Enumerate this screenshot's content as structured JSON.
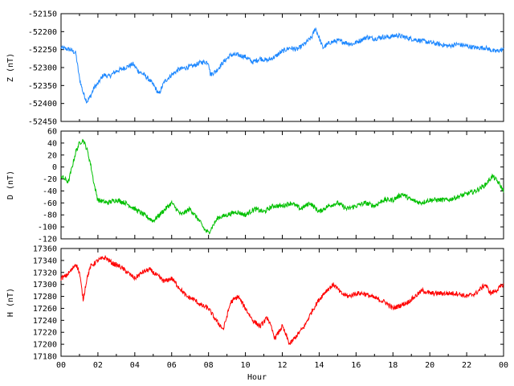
{
  "chart_data": [
    {
      "type": "line",
      "ylabel": "Z (nT)",
      "ylim": [
        -52450,
        -52150
      ],
      "yticks": [
        -52150,
        -52200,
        -52250,
        -52300,
        -52350,
        -52400,
        -52450
      ],
      "color": "#1e88ff",
      "x": [
        0,
        0.5,
        0.8,
        1.0,
        1.2,
        1.4,
        1.6,
        1.8,
        2.0,
        2.3,
        2.6,
        3.0,
        3.5,
        3.9,
        4.2,
        4.5,
        4.8,
        5.1,
        5.3,
        5.6,
        6.0,
        6.4,
        6.8,
        7.2,
        7.6,
        8.0,
        8.1,
        8.4,
        8.8,
        9.2,
        9.6,
        10.0,
        10.4,
        10.8,
        11.2,
        11.6,
        12.0,
        12.4,
        12.8,
        13.2,
        13.6,
        13.8,
        14.2,
        14.6,
        15.0,
        15.4,
        15.8,
        16.2,
        16.6,
        17.0,
        17.4,
        17.8,
        18.2,
        18.6,
        19.0,
        19.5,
        20.0,
        20.5,
        21.0,
        21.5,
        22.0,
        22.5,
        23.0,
        23.5,
        24.0
      ],
      "y": [
        -52245,
        -52250,
        -52260,
        -52330,
        -52370,
        -52395,
        -52380,
        -52355,
        -52345,
        -52320,
        -52325,
        -52310,
        -52300,
        -52290,
        -52310,
        -52320,
        -52335,
        -52355,
        -52375,
        -52340,
        -52320,
        -52305,
        -52300,
        -52295,
        -52285,
        -52285,
        -52320,
        -52310,
        -52285,
        -52265,
        -52265,
        -52270,
        -52285,
        -52275,
        -52280,
        -52270,
        -52255,
        -52245,
        -52250,
        -52235,
        -52215,
        -52190,
        -52245,
        -52230,
        -52225,
        -52230,
        -52235,
        -52225,
        -52215,
        -52220,
        -52215,
        -52215,
        -52210,
        -52215,
        -52220,
        -52225,
        -52230,
        -52235,
        -52240,
        -52235,
        -52240,
        -52245,
        -52245,
        -52255,
        -52250
      ]
    },
    {
      "type": "line",
      "ylabel": "D (nT)",
      "ylim": [
        -120,
        60
      ],
      "yticks": [
        60,
        40,
        20,
        0,
        -20,
        -40,
        -60,
        -80,
        -100,
        -120
      ],
      "color": "#00c000",
      "x": [
        0,
        0.4,
        0.6,
        0.8,
        1.0,
        1.2,
        1.4,
        1.6,
        1.8,
        2.0,
        2.5,
        3.0,
        3.5,
        4.0,
        4.5,
        5.0,
        5.5,
        6.0,
        6.5,
        7.0,
        7.5,
        7.8,
        8.0,
        8.2,
        8.5,
        9.0,
        9.5,
        10.0,
        10.5,
        11.0,
        11.5,
        12.0,
        12.5,
        13.0,
        13.5,
        14.0,
        14.5,
        15.0,
        15.5,
        16.0,
        16.5,
        17.0,
        17.5,
        18.0,
        18.5,
        19.0,
        19.5,
        20.0,
        20.5,
        21.0,
        21.5,
        22.0,
        22.5,
        23.0,
        23.4,
        23.7,
        24.0
      ],
      "y": [
        -15,
        -25,
        0,
        25,
        40,
        45,
        30,
        5,
        -30,
        -55,
        -60,
        -55,
        -60,
        -70,
        -80,
        -90,
        -75,
        -60,
        -80,
        -70,
        -90,
        -105,
        -110,
        -100,
        -85,
        -80,
        -75,
        -80,
        -70,
        -75,
        -65,
        -65,
        -60,
        -70,
        -60,
        -75,
        -65,
        -60,
        -70,
        -65,
        -60,
        -65,
        -55,
        -55,
        -45,
        -55,
        -60,
        -55,
        -55,
        -55,
        -50,
        -45,
        -40,
        -30,
        -15,
        -25,
        -40
      ]
    },
    {
      "type": "line",
      "ylabel": "H (nT)",
      "xlabel": "Hour",
      "ylim": [
        17180,
        17360
      ],
      "yticks": [
        17360,
        17340,
        17320,
        17300,
        17280,
        17260,
        17240,
        17220,
        17200,
        17180
      ],
      "xticks": [
        "00",
        "02",
        "04",
        "06",
        "08",
        "10",
        "12",
        "14",
        "16",
        "18",
        "20",
        "22",
        "00"
      ],
      "color": "#ff0000",
      "x": [
        0,
        0.3,
        0.6,
        0.8,
        1.0,
        1.2,
        1.4,
        1.6,
        2.0,
        2.4,
        2.8,
        3.2,
        3.6,
        4.0,
        4.4,
        4.8,
        5.2,
        5.6,
        6.0,
        6.4,
        6.8,
        7.2,
        7.6,
        8.0,
        8.4,
        8.8,
        9.2,
        9.6,
        10.0,
        10.4,
        10.8,
        11.2,
        11.6,
        12.0,
        12.4,
        12.8,
        13.2,
        13.6,
        14.0,
        14.4,
        14.8,
        15.2,
        15.6,
        16.0,
        16.4,
        16.8,
        17.2,
        17.6,
        18.0,
        18.4,
        18.8,
        19.2,
        19.6,
        20.0,
        20.5,
        21.0,
        21.5,
        22.0,
        22.5,
        23.0,
        23.3,
        23.6,
        24.0
      ],
      "y": [
        17310,
        17315,
        17325,
        17335,
        17320,
        17275,
        17310,
        17330,
        17340,
        17345,
        17335,
        17330,
        17320,
        17310,
        17320,
        17325,
        17315,
        17305,
        17310,
        17295,
        17280,
        17275,
        17265,
        17260,
        17240,
        17225,
        17270,
        17280,
        17260,
        17240,
        17230,
        17245,
        17210,
        17230,
        17200,
        17215,
        17230,
        17255,
        17275,
        17290,
        17300,
        17285,
        17280,
        17285,
        17285,
        17280,
        17275,
        17270,
        17260,
        17265,
        17270,
        17280,
        17290,
        17285,
        17285,
        17285,
        17285,
        17280,
        17285,
        17300,
        17285,
        17290,
        17300
      ]
    }
  ]
}
